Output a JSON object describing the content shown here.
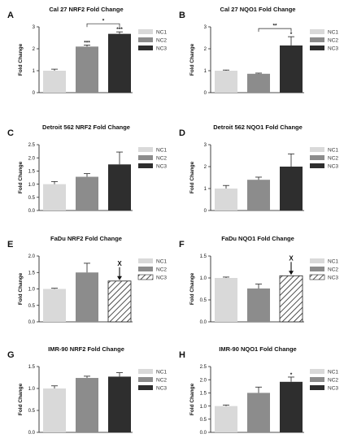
{
  "legend_labels": [
    "NC1",
    "NC2",
    "NC3"
  ],
  "colors": {
    "NC1": "#d9d9d9",
    "NC2": "#8c8c8c",
    "NC3": "#2e2e2e"
  },
  "ylabel": "Fold Change",
  "chart_data": [
    {
      "letter": "A",
      "type": "bar",
      "title": "Cal 27 NRF2 Fold Change",
      "ylabel": "Fold Change",
      "categories": [
        "NC1",
        "NC2",
        "NC3"
      ],
      "values": [
        1.0,
        2.1,
        2.68
      ],
      "errors": [
        0.07,
        0.07,
        0.09
      ],
      "ylim": [
        0,
        3
      ],
      "yticks": [
        "0",
        "1",
        "2",
        "3"
      ],
      "ytick_values": [
        0,
        1,
        2,
        3
      ],
      "bar_stars": [
        "",
        "***",
        "***"
      ],
      "brackets": [
        {
          "from": 1,
          "to": 2,
          "label": "*"
        }
      ],
      "hatched": [],
      "arrow_mark": null
    },
    {
      "letter": "B",
      "type": "bar",
      "title": "Cal 27 NQO1 Fold Change",
      "ylabel": "Fold Change",
      "categories": [
        "NC1",
        "NC2",
        "NC3"
      ],
      "values": [
        1.0,
        0.86,
        2.15
      ],
      "errors": [
        0.03,
        0.03,
        0.4
      ],
      "ylim": [
        0,
        3
      ],
      "yticks": [
        "0",
        "1",
        "2",
        "3"
      ],
      "ytick_values": [
        0,
        1,
        2,
        3
      ],
      "bar_stars": [
        "",
        "",
        "*"
      ],
      "brackets": [
        {
          "from": 1,
          "to": 2,
          "label": "**"
        }
      ],
      "hatched": [],
      "arrow_mark": null
    },
    {
      "letter": "C",
      "type": "bar",
      "title": "Detroit 562 NRF2 Fold Change",
      "ylabel": "Fold Change",
      "categories": [
        "NC1",
        "NC2",
        "NC3"
      ],
      "values": [
        1.0,
        1.28,
        1.75
      ],
      "errors": [
        0.1,
        0.12,
        0.47
      ],
      "ylim": [
        0,
        2.5
      ],
      "yticks": [
        "0.0",
        "0.5",
        "1.0",
        "1.5",
        "2.0",
        "2.5"
      ],
      "ytick_values": [
        0,
        0.5,
        1,
        1.5,
        2,
        2.5
      ],
      "bar_stars": [
        "",
        "",
        ""
      ],
      "brackets": [],
      "hatched": [],
      "arrow_mark": null
    },
    {
      "letter": "D",
      "type": "bar",
      "title": "Detroit 562 NQO1 Fold Change",
      "ylabel": "Fold Change",
      "categories": [
        "NC1",
        "NC2",
        "NC3"
      ],
      "values": [
        1.0,
        1.4,
        2.0
      ],
      "errors": [
        0.14,
        0.12,
        0.58
      ],
      "ylim": [
        0,
        3
      ],
      "yticks": [
        "0",
        "1",
        "2",
        "3"
      ],
      "ytick_values": [
        0,
        1,
        2,
        3
      ],
      "bar_stars": [
        "",
        "",
        ""
      ],
      "brackets": [],
      "hatched": [],
      "arrow_mark": null
    },
    {
      "letter": "E",
      "type": "bar",
      "title": "FaDu NRF2 Fold  Change",
      "ylabel": "Fold Change",
      "categories": [
        "NC1",
        "NC2",
        "NC3"
      ],
      "values": [
        1.0,
        1.5,
        1.24
      ],
      "errors": [
        0.02,
        0.28,
        0
      ],
      "ylim": [
        0,
        2.0
      ],
      "yticks": [
        "0.0",
        "0.5",
        "1.0",
        "1.5",
        "2.0"
      ],
      "ytick_values": [
        0,
        0.5,
        1,
        1.5,
        2
      ],
      "bar_stars": [
        "",
        "",
        ""
      ],
      "brackets": [],
      "hatched": [
        2
      ],
      "arrow_mark": {
        "bar": 2,
        "label": "X"
      }
    },
    {
      "letter": "F",
      "type": "bar",
      "title": "FaDu NQO1 Fold Change",
      "ylabel": "Fold Change",
      "categories": [
        "NC1",
        "NC2",
        "NC3"
      ],
      "values": [
        1.0,
        0.76,
        1.05
      ],
      "errors": [
        0.02,
        0.1,
        0
      ],
      "ylim": [
        0,
        1.5
      ],
      "yticks": [
        "0.0",
        "0.5",
        "1.0",
        "1.5"
      ],
      "ytick_values": [
        0,
        0.5,
        1,
        1.5
      ],
      "bar_stars": [
        "",
        "",
        ""
      ],
      "brackets": [],
      "hatched": [
        2
      ],
      "arrow_mark": {
        "bar": 2,
        "label": "X"
      }
    },
    {
      "letter": "G",
      "type": "bar",
      "title": "IMR-90 NRF2 Fold Change",
      "ylabel": "Fold Change",
      "categories": [
        "NC1",
        "NC2",
        "NC3"
      ],
      "values": [
        1.0,
        1.24,
        1.27
      ],
      "errors": [
        0.06,
        0.04,
        0.09
      ],
      "ylim": [
        0,
        1.5
      ],
      "yticks": [
        "0.0",
        "0.5",
        "1.0",
        "1.5"
      ],
      "ytick_values": [
        0,
        0.5,
        1,
        1.5
      ],
      "bar_stars": [
        "",
        "",
        ""
      ],
      "brackets": [],
      "hatched": [],
      "arrow_mark": null
    },
    {
      "letter": "H",
      "type": "bar",
      "title": "IMR-90 NQO1 Fold Change",
      "ylabel": "Fold Change",
      "categories": [
        "NC1",
        "NC2",
        "NC3"
      ],
      "values": [
        1.0,
        1.5,
        1.92
      ],
      "errors": [
        0.04,
        0.22,
        0.18
      ],
      "ylim": [
        0,
        2.5
      ],
      "yticks": [
        "0.0",
        "0.5",
        "1.0",
        "1.5",
        "2.0",
        "2.5"
      ],
      "ytick_values": [
        0,
        0.5,
        1,
        1.5,
        2,
        2.5
      ],
      "bar_stars": [
        "",
        "",
        "*"
      ],
      "brackets": [],
      "hatched": [],
      "arrow_mark": null
    }
  ]
}
